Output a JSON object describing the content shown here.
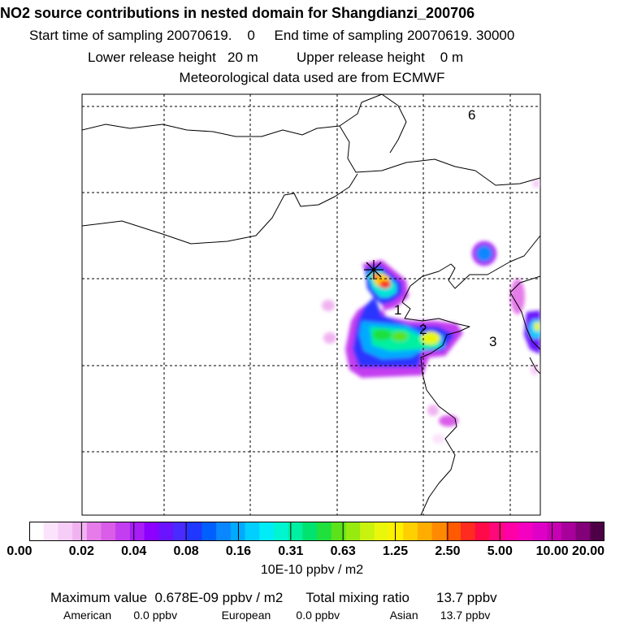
{
  "header": {
    "title": "NO2 source contributions in nested domain for Shangdianzi_200706",
    "start_label": "Start time of sampling 20070619.",
    "start_value": "0",
    "end_label": "End time of sampling 20070619. 30000",
    "lower_label": "Lower release height",
    "lower_value": "20 m",
    "upper_label": "Upper release height",
    "upper_value": "0 m",
    "met_line": "Meteorological data used are from ECMWF"
  },
  "map": {
    "region_labels": [
      "1",
      "2",
      "3",
      "6"
    ],
    "receptor_marker": "star-icon"
  },
  "colorbar": {
    "tick_labels": [
      "0.00",
      "0.02",
      "0.04",
      "0.08",
      "0.16",
      "0.31",
      "0.63",
      "1.25",
      "2.50",
      "5.00",
      "10.00",
      "20.00"
    ],
    "unit": "10E-10 ppbv / m2",
    "colors": [
      "#ffffff",
      "#fbe4fb",
      "#f6cdf6",
      "#f0b3f0",
      "#e57ce9",
      "#d95de8",
      "#c23ef0",
      "#a81cf5",
      "#8b00ff",
      "#6a13ff",
      "#4a2bff",
      "#1f37ff",
      "#0060ff",
      "#0a86ff",
      "#00aaff",
      "#00cfff",
      "#00ecf6",
      "#00f5d0",
      "#00f0a2",
      "#00e36e",
      "#1fe03c",
      "#5be21b",
      "#97ea10",
      "#c9f20f",
      "#eaf70a",
      "#fff000",
      "#ffd000",
      "#ffae00",
      "#ff8a00",
      "#ff5a00",
      "#ff2a20",
      "#ff0a48",
      "#ff087a",
      "#ff00a6",
      "#f400c0",
      "#df00c8",
      "#c800b4",
      "#a8009a",
      "#820078",
      "#4e0046"
    ]
  },
  "stats": {
    "max_label": "Maximum value",
    "max_value": "0.678E-09 ppbv / m2",
    "total_label": "Total mixing ratio",
    "total_value": "13.7 ppbv",
    "american_label": "American",
    "american_value": "0.0 ppbv",
    "european_label": "European",
    "european_value": "0.0 ppbv",
    "asian_label": "Asian",
    "asian_value": "13.7 ppbv"
  }
}
